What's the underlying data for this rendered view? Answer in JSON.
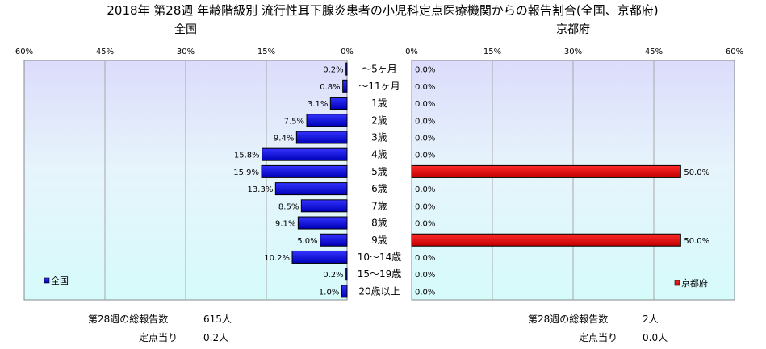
{
  "chart_data": {
    "type": "bar",
    "title": "2018年 第28週 年齢階級別 流行性耳下腺炎患者の小児科定点医療機関からの報告割合(全国、京都府)",
    "categories": [
      "～5ヶ月",
      "～11ヶ月",
      "1歳",
      "2歳",
      "3歳",
      "4歳",
      "5歳",
      "6歳",
      "7歳",
      "8歳",
      "9歳",
      "10～14歳",
      "15～19歳",
      "20歳以上"
    ],
    "xlim": [
      0,
      60
    ],
    "tick_labels": [
      "60%",
      "45%",
      "30%",
      "15%",
      "0%",
      "0%",
      "15%",
      "30%",
      "45%",
      "60%"
    ],
    "grid": true,
    "series": [
      {
        "name": "全国",
        "panel_title": "全国",
        "values": [
          0.2,
          0.8,
          3.1,
          7.5,
          9.4,
          15.8,
          15.9,
          13.3,
          8.5,
          9.1,
          5.0,
          10.2,
          0.2,
          1.0
        ],
        "labels": [
          "0.2%",
          "0.8%",
          "3.1%",
          "7.5%",
          "9.4%",
          "15.8%",
          "15.9%",
          "13.3%",
          "8.5%",
          "9.1%",
          "5.0%",
          "10.2%",
          "0.2%",
          "1.0%"
        ],
        "color": "#0a0ad8",
        "legend_position": "bottom-left"
      },
      {
        "name": "京都府",
        "panel_title": "京都府",
        "values": [
          0.0,
          0.0,
          0.0,
          0.0,
          0.0,
          0.0,
          50.0,
          0.0,
          0.0,
          0.0,
          50.0,
          0.0,
          0.0,
          0.0
        ],
        "labels": [
          "0.0%",
          "0.0%",
          "0.0%",
          "0.0%",
          "0.0%",
          "0.0%",
          "50.0%",
          "0.0%",
          "0.0%",
          "0.0%",
          "50.0%",
          "0.0%",
          "0.0%",
          "0.0%"
        ],
        "color": "#dd0000",
        "legend_position": "bottom-right"
      }
    ]
  },
  "footer": {
    "left": {
      "total_label": "第28週の総報告数",
      "total_value": "615人",
      "per_site_label": "定点当り",
      "per_site_value": "0.2人"
    },
    "right": {
      "total_label": "第28週の総報告数",
      "total_value": "2人",
      "per_site_label": "定点当り",
      "per_site_value": "0.0人"
    }
  }
}
